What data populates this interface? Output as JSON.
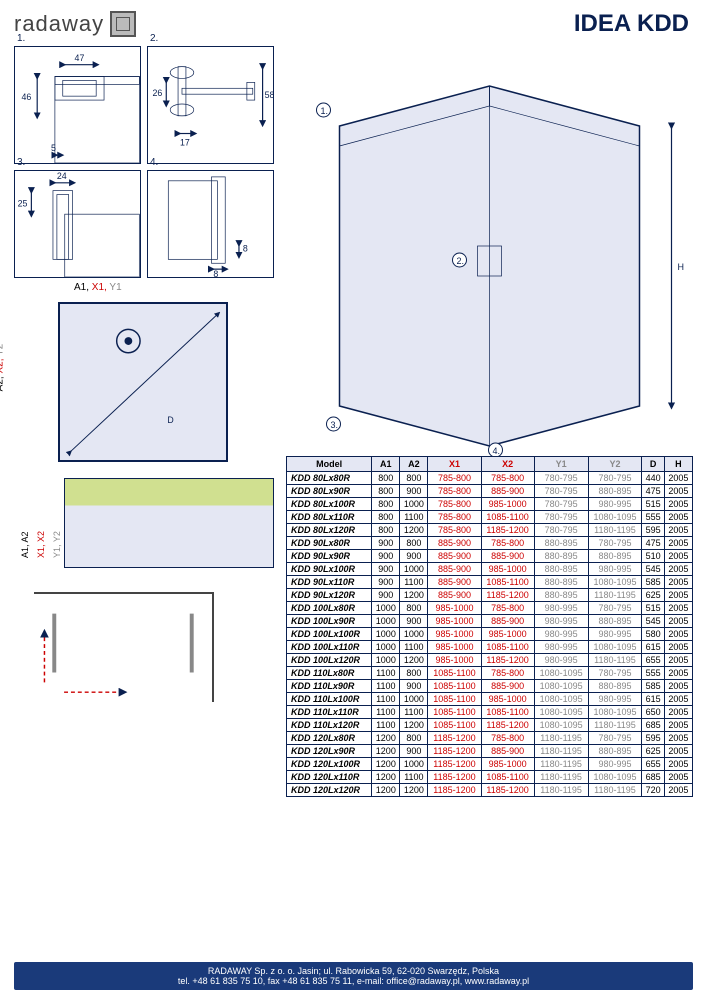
{
  "logo_text": "radaway",
  "title": "IDEA KDD",
  "detail_labels": [
    "1.",
    "2.",
    "3.",
    "4."
  ],
  "main_callouts": [
    "1.",
    "2.",
    "3.",
    "4."
  ],
  "detail_dims": {
    "d1_top": "47",
    "d1_left": "46",
    "d1_bottom": "5",
    "d2_v": "26",
    "d2_h": "17",
    "d2_right": "58",
    "d3_top": "24",
    "d3_left": "25",
    "d4_v": "8",
    "d4_h": "8"
  },
  "plan_top_a": "A1, ",
  "plan_top_x": "X1, ",
  "plan_top_y": "Y1",
  "plan_left_a": "A2, ",
  "plan_left_x": "X2, ",
  "plan_left_y": "Y2",
  "plan_d": "D",
  "profile_a": "A1, A2",
  "profile_x": "X1, X2",
  "profile_y": "Y1, Y2",
  "main_h": "H",
  "table": {
    "headers": [
      "Model",
      "A1",
      "A2",
      "X1",
      "X2",
      "Y1",
      "Y2",
      "D",
      "H"
    ],
    "rows": [
      [
        "KDD 80Lx80R",
        "800",
        "800",
        "785-800",
        "785-800",
        "780-795",
        "780-795",
        "440",
        "2005"
      ],
      [
        "KDD 80Lx90R",
        "800",
        "900",
        "785-800",
        "885-900",
        "780-795",
        "880-895",
        "475",
        "2005"
      ],
      [
        "KDD 80Lx100R",
        "800",
        "1000",
        "785-800",
        "985-1000",
        "780-795",
        "980-995",
        "515",
        "2005"
      ],
      [
        "KDD 80Lx110R",
        "800",
        "1100",
        "785-800",
        "1085-1100",
        "780-795",
        "1080-1095",
        "555",
        "2005"
      ],
      [
        "KDD 80Lx120R",
        "800",
        "1200",
        "785-800",
        "1185-1200",
        "780-795",
        "1180-1195",
        "595",
        "2005"
      ],
      [
        "KDD 90Lx80R",
        "900",
        "800",
        "885-900",
        "785-800",
        "880-895",
        "780-795",
        "475",
        "2005"
      ],
      [
        "KDD 90Lx90R",
        "900",
        "900",
        "885-900",
        "885-900",
        "880-895",
        "880-895",
        "510",
        "2005"
      ],
      [
        "KDD 90Lx100R",
        "900",
        "1000",
        "885-900",
        "985-1000",
        "880-895",
        "980-995",
        "545",
        "2005"
      ],
      [
        "KDD 90Lx110R",
        "900",
        "1100",
        "885-900",
        "1085-1100",
        "880-895",
        "1080-1095",
        "585",
        "2005"
      ],
      [
        "KDD 90Lx120R",
        "900",
        "1200",
        "885-900",
        "1185-1200",
        "880-895",
        "1180-1195",
        "625",
        "2005"
      ],
      [
        "KDD 100Lx80R",
        "1000",
        "800",
        "985-1000",
        "785-800",
        "980-995",
        "780-795",
        "515",
        "2005"
      ],
      [
        "KDD 100Lx90R",
        "1000",
        "900",
        "985-1000",
        "885-900",
        "980-995",
        "880-895",
        "545",
        "2005"
      ],
      [
        "KDD 100Lx100R",
        "1000",
        "1000",
        "985-1000",
        "985-1000",
        "980-995",
        "980-995",
        "580",
        "2005"
      ],
      [
        "KDD 100Lx110R",
        "1000",
        "1100",
        "985-1000",
        "1085-1100",
        "980-995",
        "1080-1095",
        "615",
        "2005"
      ],
      [
        "KDD 100Lx120R",
        "1000",
        "1200",
        "985-1000",
        "1185-1200",
        "980-995",
        "1180-1195",
        "655",
        "2005"
      ],
      [
        "KDD 110Lx80R",
        "1100",
        "800",
        "1085-1100",
        "785-800",
        "1080-1095",
        "780-795",
        "555",
        "2005"
      ],
      [
        "KDD 110Lx90R",
        "1100",
        "900",
        "1085-1100",
        "885-900",
        "1080-1095",
        "880-895",
        "585",
        "2005"
      ],
      [
        "KDD 110Lx100R",
        "1100",
        "1000",
        "1085-1100",
        "985-1000",
        "1080-1095",
        "980-995",
        "615",
        "2005"
      ],
      [
        "KDD 110Lx110R",
        "1100",
        "1100",
        "1085-1100",
        "1085-1100",
        "1080-1095",
        "1080-1095",
        "650",
        "2005"
      ],
      [
        "KDD 110Lx120R",
        "1100",
        "1200",
        "1085-1100",
        "1185-1200",
        "1080-1095",
        "1180-1195",
        "685",
        "2005"
      ],
      [
        "KDD 120Lx80R",
        "1200",
        "800",
        "1185-1200",
        "785-800",
        "1180-1195",
        "780-795",
        "595",
        "2005"
      ],
      [
        "KDD 120Lx90R",
        "1200",
        "900",
        "1185-1200",
        "885-900",
        "1180-1195",
        "880-895",
        "625",
        "2005"
      ],
      [
        "KDD 120Lx100R",
        "1200",
        "1000",
        "1185-1200",
        "985-1000",
        "1180-1195",
        "980-995",
        "655",
        "2005"
      ],
      [
        "KDD 120Lx110R",
        "1200",
        "1100",
        "1185-1200",
        "1085-1100",
        "1180-1195",
        "1080-1095",
        "685",
        "2005"
      ],
      [
        "KDD 120Lx120R",
        "1200",
        "1200",
        "1185-1200",
        "1185-1200",
        "1180-1195",
        "1180-1195",
        "720",
        "2005"
      ]
    ]
  },
  "footer_line1": "RADAWAY Sp. z o. o. Jasin; ul. Rabowicka 59, 62-020 Swarzędz, Polska",
  "footer_line2": "tel. +48 61 835 75 10, fax +48 61 835 75 11, e-mail: office@radaway.pl, www.radaway.pl",
  "colors": {
    "navy": "#0a2050",
    "red": "#c00",
    "gray": "#888",
    "panel": "#e4e7f3",
    "green": "#d0e090"
  }
}
